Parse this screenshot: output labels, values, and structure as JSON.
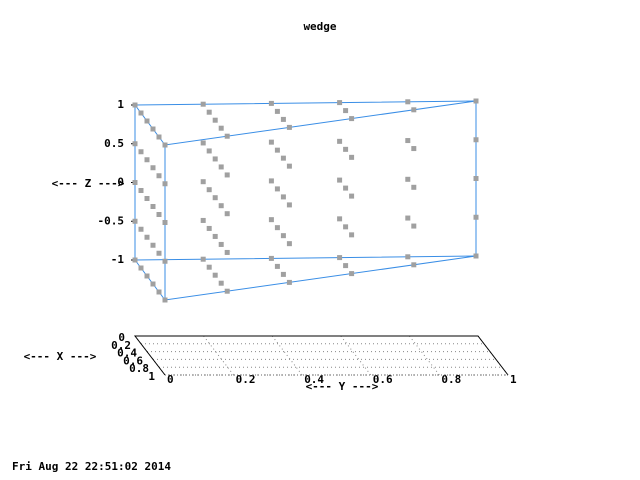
{
  "chart_data": {
    "type": "scatter3d",
    "title": "wedge",
    "xlabel": "<--- X --->",
    "ylabel": "<--- Y --->",
    "zlabel": "<--- Z --->",
    "timestamp": "Fri Aug 22 22:51:02 2014",
    "xlim": [
      0,
      1
    ],
    "ylim": [
      0,
      1
    ],
    "zlim": [
      -1,
      1
    ],
    "xticks": [
      0,
      0.2,
      0.4,
      0.6,
      0.8,
      1
    ],
    "yticks": [
      0,
      0.2,
      0.4,
      0.6,
      0.8,
      1
    ],
    "zticks": [
      1,
      0.5,
      0,
      -0.5,
      -1
    ],
    "point_color": "#a0a0a0",
    "outline_color": "#3a8ee6",
    "grid": true,
    "z_levels": [
      -1,
      -0.5,
      0,
      0.5,
      1
    ],
    "columns": [
      {
        "y": 0,
        "x": [
          0,
          0.2,
          0.4,
          0.6,
          0.8,
          1
        ]
      },
      {
        "y": 0.2,
        "x": [
          0,
          0.2,
          0.4,
          0.6,
          0.8
        ]
      },
      {
        "y": 0.4,
        "x": [
          0,
          0.2,
          0.4,
          0.6
        ]
      },
      {
        "y": 0.6,
        "x": [
          0,
          0.2,
          0.4
        ]
      },
      {
        "y": 0.8,
        "x": [
          0,
          0.2
        ]
      },
      {
        "y": 1,
        "x": [
          0
        ]
      }
    ]
  }
}
